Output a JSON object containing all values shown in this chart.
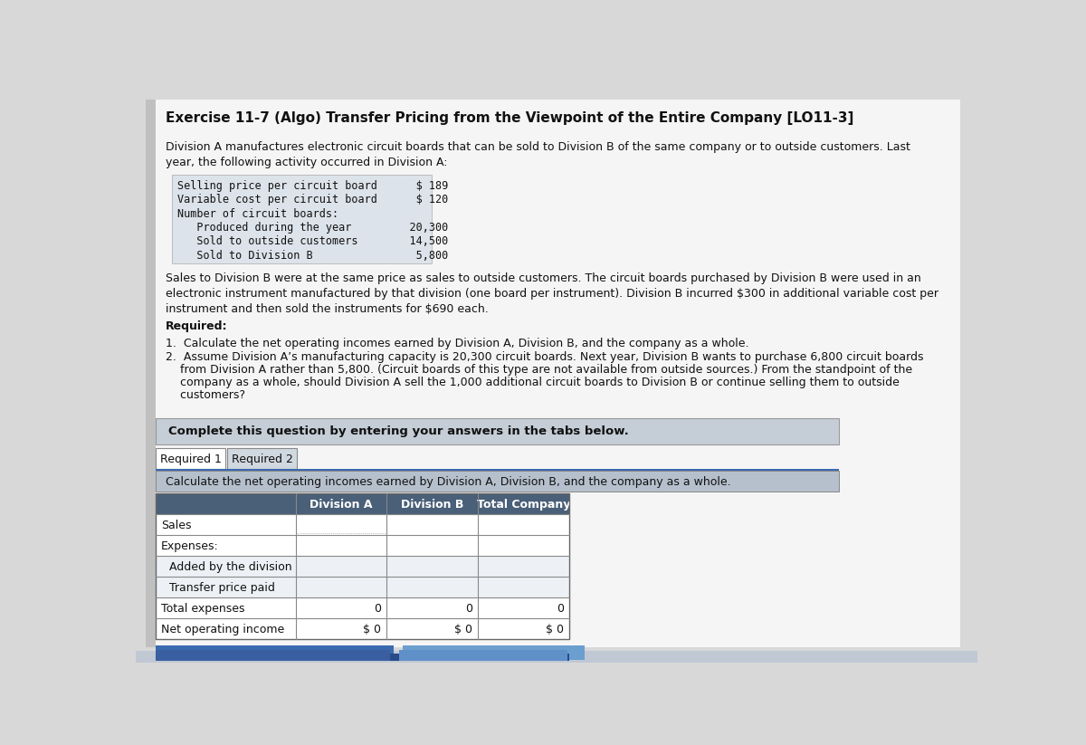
{
  "title": "Exercise 11-7 (Algo) Transfer Pricing from the Viewpoint of the Entire Company [LO11-3]",
  "page_bg": "#d8d8d8",
  "content_bg": "#f5f5f5",
  "para1": "Division A manufactures electronic circuit boards that can be sold to Division B of the same company or to outside customers. Last\nyear, the following activity occurred in Division A:",
  "monospace_lines": [
    "Selling price per circuit board      $ 189",
    "Variable cost per circuit board      $ 120",
    "Number of circuit boards:",
    "   Produced during the year         20,300",
    "   Sold to outside customers        14,500",
    "   Sold to Division B                5,800"
  ],
  "mono_bg": "#dce3ea",
  "para2": "Sales to Division B were at the same price as sales to outside customers. The circuit boards purchased by Division B were used in an\nelectronic instrument manufactured by that division (one board per instrument). Division B incurred $300 in additional variable cost per\ninstrument and then sold the instruments for $690 each.",
  "required_label": "Required:",
  "req1": "1.  Calculate the net operating incomes earned by Division A, Division B, and the company as a whole.",
  "req2_line1": "2.  Assume Division A’s manufacturing capacity is 20,300 circuit boards. Next year, Division B wants to purchase 6,800 circuit boards",
  "req2_line2": "    from Division A rather than 5,800. (Circuit boards of this type are not available from outside sources.) From the standpoint of the",
  "req2_line3": "    company as a whole, should Division A sell the 1,000 additional circuit boards to Division B or continue selling them to outside",
  "req2_line4": "    customers?",
  "complete_box_text": "Complete this question by entering your answers in the tabs below.",
  "complete_box_bg": "#c5cdd6",
  "tab1": "Required 1",
  "tab2": "Required 2",
  "instruct_text": "Calculate the net operating incomes earned by Division A, Division B, and the company as a whole.",
  "instruct_bg": "#b5c0cc",
  "table_header_bg": "#4a5f78",
  "table_header_color": "#ffffff",
  "col_headers": [
    "Division A",
    "Division B",
    "Total Company"
  ],
  "row_labels": [
    "Sales",
    "Expenses:",
    "  Added by the division",
    "  Transfer price paid",
    "Total expenses",
    "Net operating income"
  ],
  "row_values": [
    [
      "",
      "",
      ""
    ],
    [
      "",
      "",
      ""
    ],
    [
      "",
      "",
      ""
    ],
    [
      "",
      "",
      ""
    ],
    [
      "0",
      "0",
      "0"
    ],
    [
      "$ 0",
      "$ 0",
      "$ 0"
    ]
  ],
  "bottom_bar1_color": "#3a6aaf",
  "bottom_bar2_color": "#6a9fcf",
  "bottom_bar3_color": "#2a4a8a"
}
